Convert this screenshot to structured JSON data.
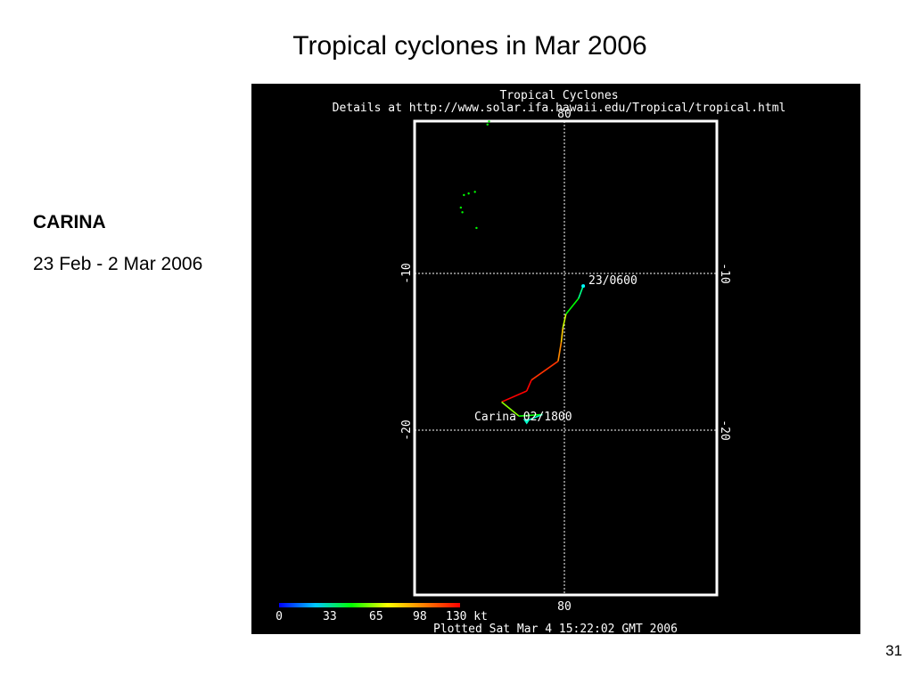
{
  "slide": {
    "title": "Tropical cyclones in Mar 2006",
    "storm_name": "CARINA",
    "storm_dates": "23 Feb - 2 Mar 2006",
    "page_number": "31"
  },
  "map": {
    "header_line1": "Tropical Cyclones",
    "header_line2": "Details at http://www.solar.ifa.hawaii.edu/Tropical/tropical.html",
    "lon_label_top": "80",
    "lon_label_bottom": "80",
    "lat_label_10": "-10",
    "lat_label_20": "-20",
    "track_start_label": "23/0600",
    "track_end_label": "Carina  02/1800",
    "plotted_label": "Plotted Sat Mar 4 15:22:02 GMT 2006",
    "colorbar": {
      "ticks": [
        "0",
        "33",
        "65",
        "98",
        "130 kt"
      ],
      "colors": [
        "#0000ff",
        "#00c8ff",
        "#00ff00",
        "#ffff00",
        "#ff8000",
        "#ff0000"
      ]
    },
    "track": [
      {
        "lon": 81.2,
        "lat": -10.8,
        "color": "#00ffff"
      },
      {
        "lon": 80.9,
        "lat": -11.6,
        "color": "#00ff88"
      },
      {
        "lon": 80.1,
        "lat": -12.6,
        "color": "#00ff00"
      },
      {
        "lon": 79.9,
        "lat": -13.5,
        "color": "#ccff00"
      },
      {
        "lon": 79.8,
        "lat": -14.4,
        "color": "#ffcc00"
      },
      {
        "lon": 79.6,
        "lat": -15.6,
        "color": "#ff8800"
      },
      {
        "lon": 77.9,
        "lat": -16.8,
        "color": "#ff3300"
      },
      {
        "lon": 77.6,
        "lat": -17.5,
        "color": "#ff0000"
      },
      {
        "lon": 76.0,
        "lat": -18.2,
        "color": "#ff0000"
      },
      {
        "lon": 77.1,
        "lat": -19.1,
        "color": "#88ff00"
      },
      {
        "lon": 78.6,
        "lat": -19.0,
        "color": "#00ff00"
      },
      {
        "lon": 77.6,
        "lat": -19.4,
        "color": "#00ffcc"
      }
    ],
    "land_specks": [
      {
        "lon": 75.1,
        "lat": -0.5
      },
      {
        "lon": 75.2,
        "lat": -0.3
      },
      {
        "lon": 73.6,
        "lat": -5.0
      },
      {
        "lon": 73.9,
        "lat": -4.9
      },
      {
        "lon": 74.3,
        "lat": -4.8
      },
      {
        "lon": 73.4,
        "lat": -5.8
      },
      {
        "lon": 73.5,
        "lat": -6.1
      },
      {
        "lon": 74.4,
        "lat": -7.1
      }
    ]
  }
}
